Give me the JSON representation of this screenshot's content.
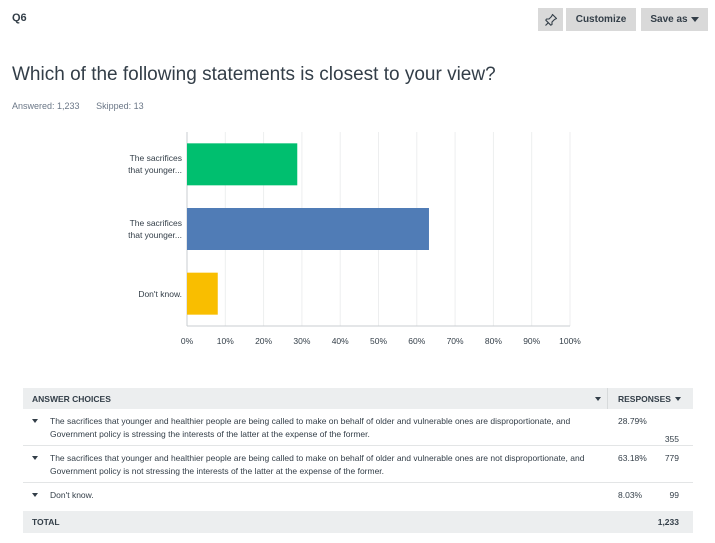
{
  "question": {
    "number": "Q6",
    "title": "Which of the following statements is closest to your view?",
    "answered_label": "Answered: 1,233",
    "skipped_label": "Skipped: 13"
  },
  "toolbar": {
    "pin_icon": "pin-icon",
    "customize_label": "Customize",
    "save_as_label": "Save as"
  },
  "chart_data": {
    "type": "bar",
    "orientation": "horizontal",
    "categories": [
      "The sacrifices that younger...",
      "The sacrifices that younger...",
      "Don't know."
    ],
    "category_lines": [
      [
        "The sacrifices",
        "that younger..."
      ],
      [
        "The sacrifices",
        "that younger..."
      ],
      [
        "Don't know."
      ]
    ],
    "values": [
      28.79,
      63.18,
      8.03
    ],
    "colors": [
      "#00bf6f",
      "#507cb6",
      "#f9be00"
    ],
    "xlim": [
      0,
      100
    ],
    "xticks": [
      "0%",
      "10%",
      "20%",
      "30%",
      "40%",
      "50%",
      "60%",
      "70%",
      "80%",
      "90%",
      "100%"
    ],
    "grid": true,
    "title": "",
    "xlabel": "",
    "ylabel": ""
  },
  "table": {
    "header_choices": "ANSWER CHOICES",
    "header_responses": "RESPONSES",
    "rows": [
      {
        "choice": "The sacrifices that younger and healthier people are being called to make on behalf of older and vulnerable ones are disproportionate, and Government policy is stressing the interests of the latter at the expense of the former.",
        "percent": "28.79%",
        "count": "355"
      },
      {
        "choice": "The sacrifices that younger and healthier people are being called to make on behalf of older and vulnerable ones are not disproportionate, and Government policy is not stressing the interests of the latter at the expense of the former.",
        "percent": "63.18%",
        "count": "779"
      },
      {
        "choice": "Don't know.",
        "percent": "8.03%",
        "count": "99"
      }
    ],
    "total_label": "TOTAL",
    "total_value": "1,233"
  }
}
